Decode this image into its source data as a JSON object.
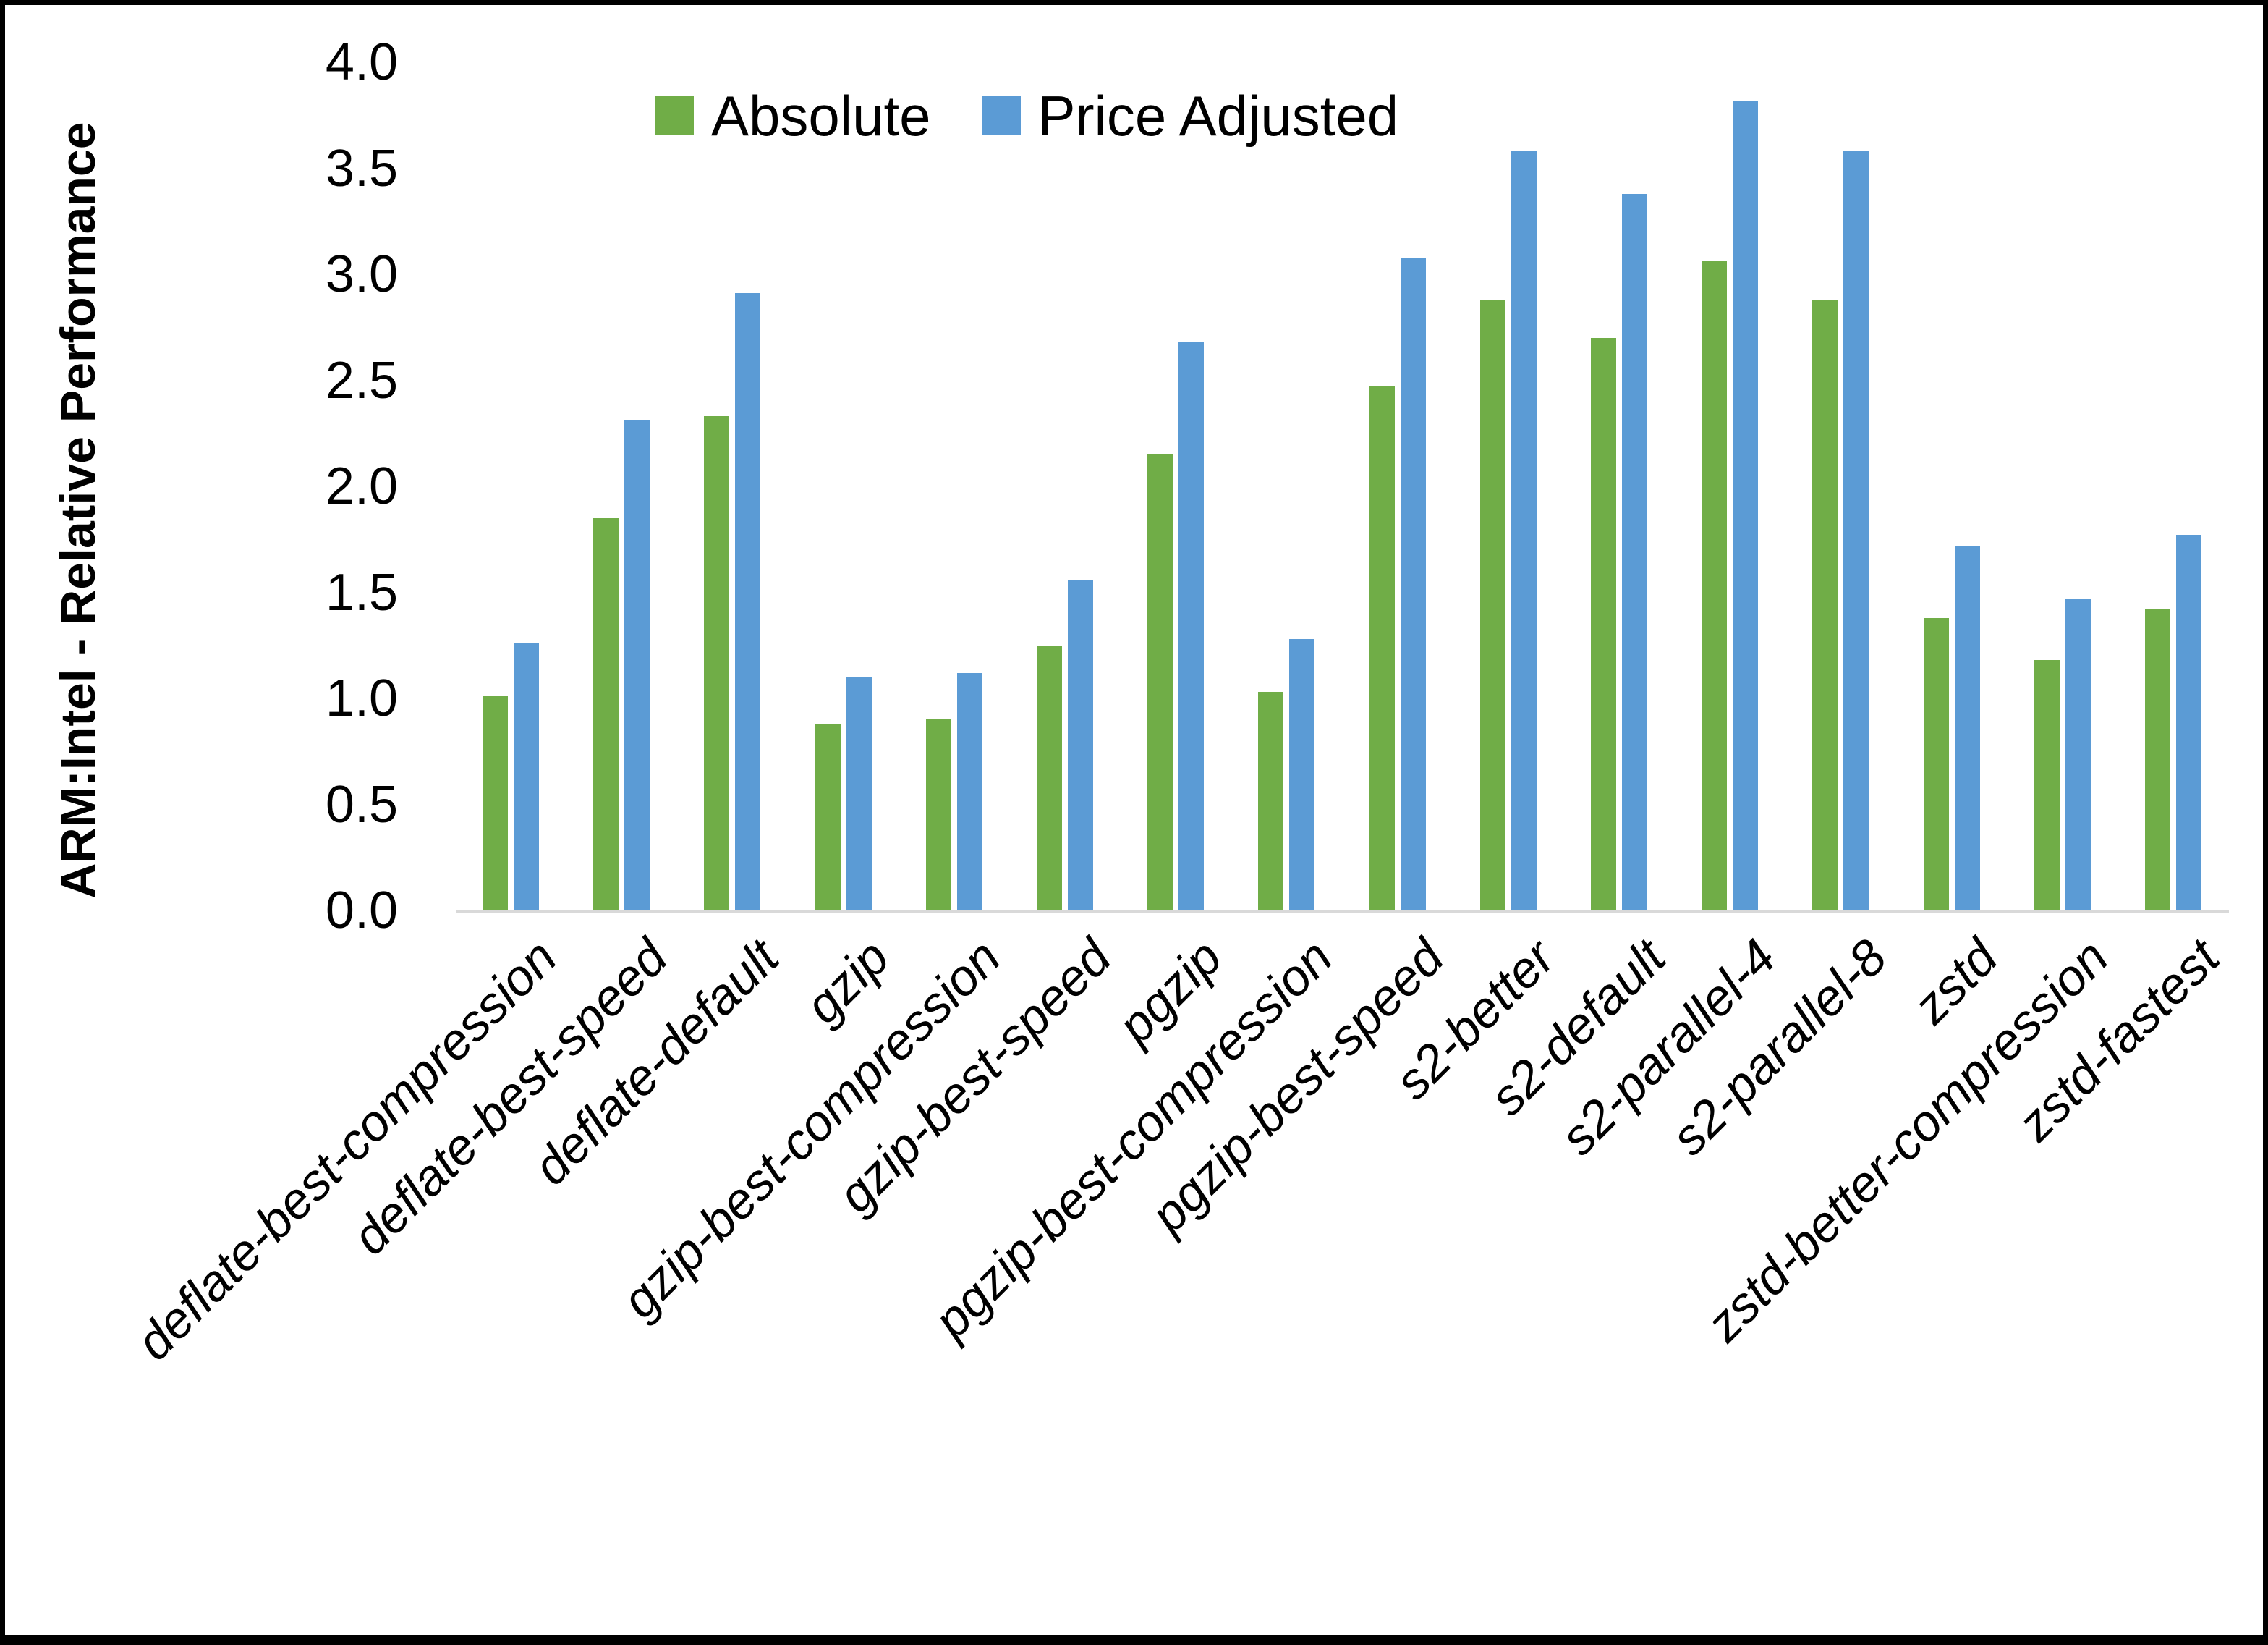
{
  "frame": {
    "border_color": "#000000"
  },
  "legend": {
    "items": [
      {
        "label": "Absolute",
        "color": "#70AD47"
      },
      {
        "label": "Price Adjusted",
        "color": "#5B9BD5"
      }
    ]
  },
  "chart_data": {
    "type": "bar",
    "title": "",
    "ylabel": "ARM:Intel - Relative Performance",
    "xlabel": "",
    "ylim": [
      0.0,
      4.0
    ],
    "ytick_step": 0.5,
    "ytick_labels": [
      "0.0",
      "0.5",
      "1.0",
      "1.5",
      "2.0",
      "2.5",
      "3.0",
      "3.5",
      "4.0"
    ],
    "grid": false,
    "legend_position": "top-center",
    "axis_line_color": "#D9D9D9",
    "categories": [
      "deflate-best-compression",
      "deflate-best-speed",
      "deflate-default",
      "gzip",
      "gzip-best-compression",
      "gzip-best-speed",
      "pgzip",
      "pgzip-best-compression",
      "pgzip-best-speed",
      "s2-better",
      "s2-default",
      "s2-parallel-4",
      "s2-parallel-8",
      "zstd",
      "zstd-better-compression",
      "zstd-fastest"
    ],
    "series": [
      {
        "name": "Absolute",
        "color": "#70AD47",
        "values": [
          1.01,
          1.85,
          2.33,
          0.88,
          0.9,
          1.25,
          2.15,
          1.03,
          2.47,
          2.88,
          2.7,
          3.06,
          2.88,
          1.38,
          1.18,
          1.42
        ]
      },
      {
        "name": "Price Adjusted",
        "color": "#5B9BD5",
        "values": [
          1.26,
          2.31,
          2.91,
          1.1,
          1.12,
          1.56,
          2.68,
          1.28,
          3.08,
          3.58,
          3.38,
          3.82,
          3.58,
          1.72,
          1.47,
          1.77
        ]
      }
    ]
  }
}
